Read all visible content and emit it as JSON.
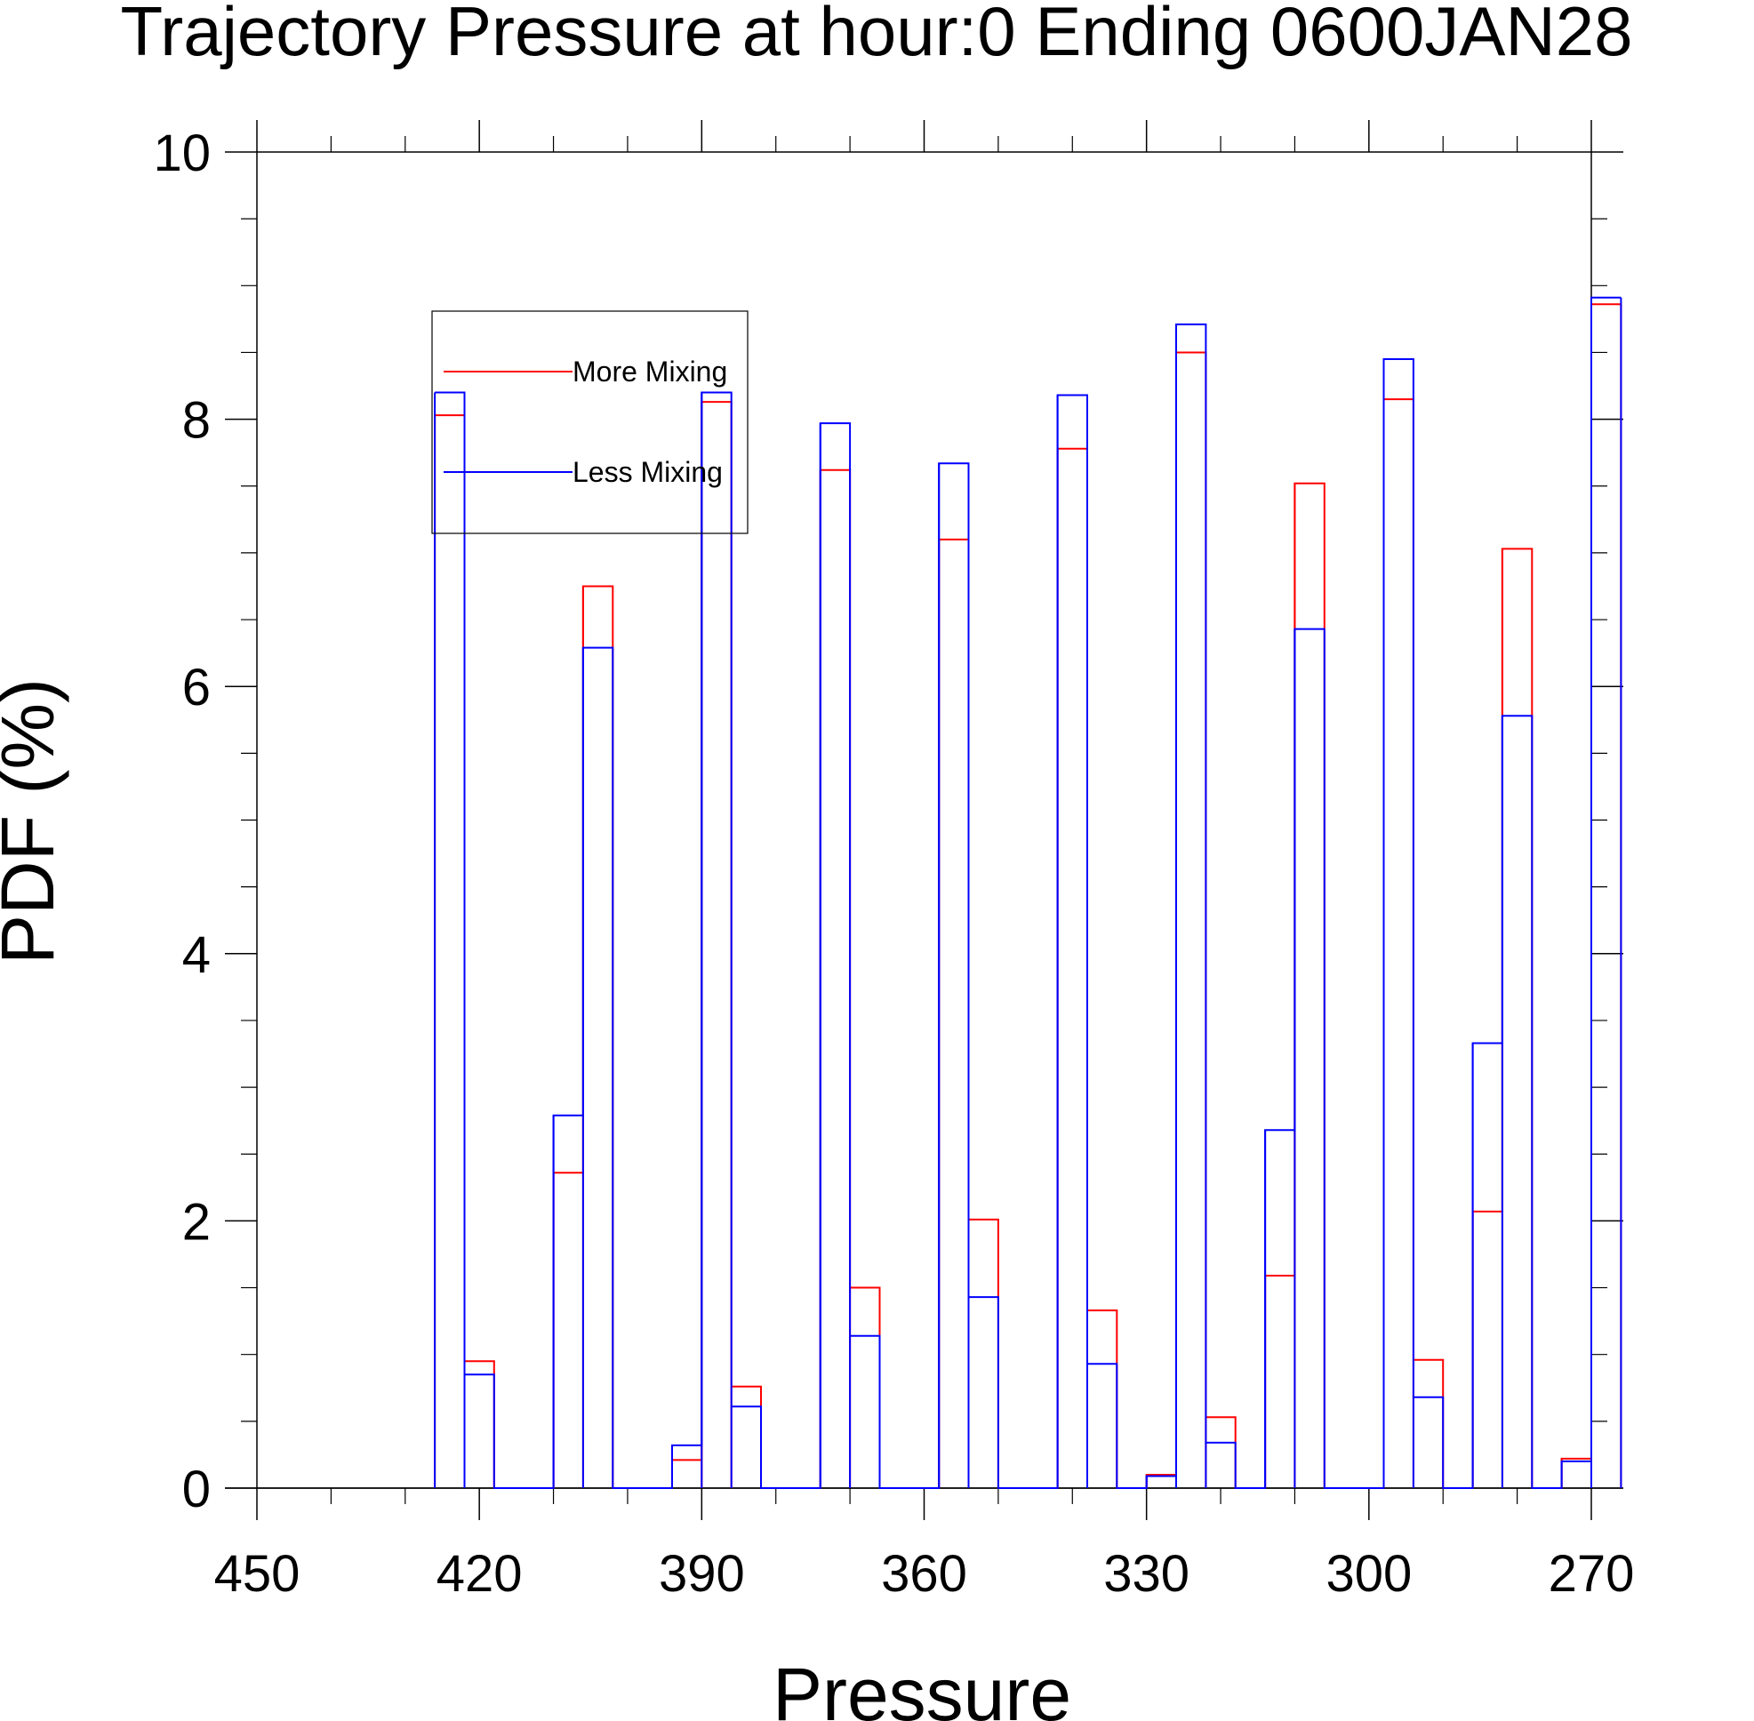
{
  "chart_data": {
    "type": "bar",
    "title": "Trajectory Pressure at hour:0 Ending 0600JAN28",
    "xlabel": "Pressure",
    "ylabel": "PDF (%)",
    "xlim": [
      450,
      270
    ],
    "ylim": [
      0,
      10
    ],
    "x_ticks": [
      "450",
      "420",
      "390",
      "360",
      "330",
      "300",
      "270"
    ],
    "y_ticks": [
      "0",
      "2",
      "4",
      "6",
      "8",
      "10"
    ],
    "bin_edges": [
      426,
      422,
      418,
      414,
      410,
      406,
      402,
      398,
      394,
      390,
      386,
      382,
      378,
      374,
      370,
      366,
      362,
      358,
      354,
      350,
      346,
      342,
      338,
      334,
      330,
      326,
      322,
      318,
      314,
      310,
      306,
      302,
      298,
      294,
      290,
      286,
      282,
      278,
      274,
      270
    ],
    "series": [
      {
        "name": "More Mixing",
        "color": "#ff0000",
        "values": [
          8.03,
          0.95,
          0,
          0,
          2.36,
          6.75,
          0,
          0,
          0.21,
          8.13,
          0.76,
          0,
          0,
          7.62,
          1.5,
          0,
          0,
          7.1,
          2.01,
          0,
          0,
          7.78,
          1.33,
          0,
          0.1,
          8.5,
          0.53,
          0,
          1.59,
          7.52,
          0,
          0,
          8.15,
          0.96,
          0,
          2.07,
          7.03,
          0,
          0.22,
          8.86
        ]
      },
      {
        "name": "Less Mixing",
        "color": "#0000ff",
        "values": [
          8.2,
          0.85,
          0,
          0,
          2.79,
          6.29,
          0,
          0,
          0.32,
          8.2,
          0.61,
          0,
          0,
          7.97,
          1.14,
          0,
          0,
          7.67,
          1.43,
          0,
          0,
          8.18,
          0.93,
          0,
          0.09,
          8.71,
          0.34,
          0,
          2.68,
          6.43,
          0,
          0,
          8.45,
          0.68,
          0,
          3.33,
          5.78,
          0,
          0.2,
          8.91
        ]
      }
    ],
    "legend": {
      "position": "top-left",
      "entries": [
        "More Mixing",
        "Less Mixing"
      ]
    },
    "grid": false
  }
}
